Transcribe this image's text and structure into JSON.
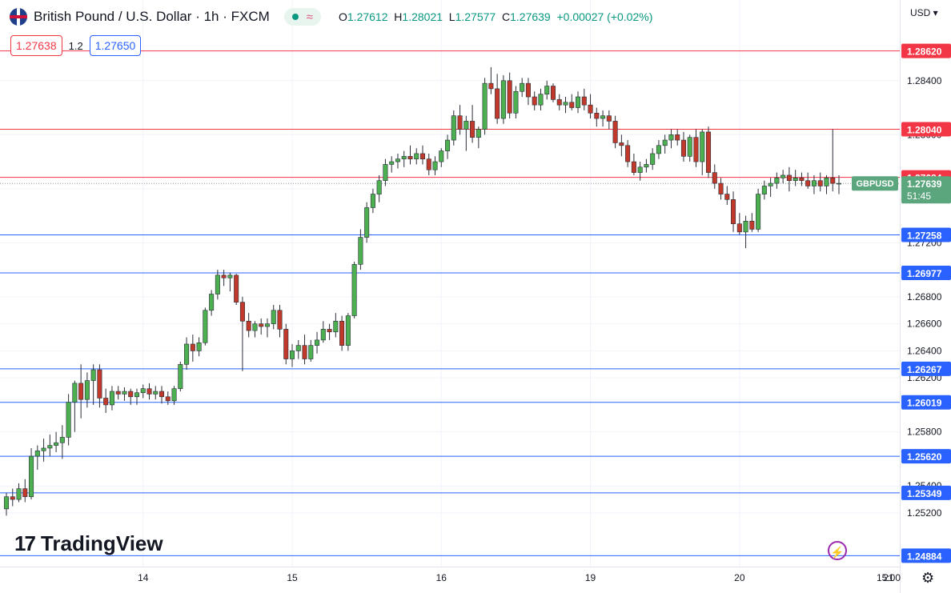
{
  "header": {
    "title": "British Pound / U.S. Dollar · 1h · FXCM",
    "ohlc": {
      "o_label": "O",
      "o": "1.27612",
      "h_label": "H",
      "h": "1.28021",
      "l_label": "L",
      "l": "1.27577",
      "c_label": "C",
      "c": "1.27639",
      "change": "+0.00027 (+0.02%)"
    },
    "wave_symbol": "≈"
  },
  "quote": {
    "sell": "1.27638",
    "spread": "1.2",
    "buy": "1.27650"
  },
  "currency": "USD",
  "brand": "TradingView",
  "icons": [
    "flag-icon",
    "gear-icon",
    "bolt-icon"
  ],
  "colors": {
    "up": "#089981",
    "down": "#f23645",
    "candle_up": "#4caf50",
    "candle_down": "#c0392b",
    "resistance": "#f23645",
    "support": "#2962ff",
    "current": "#5ca67e"
  },
  "chart_data": {
    "type": "candlestick",
    "symbol": "GBPUSD",
    "current_price": "1.27639",
    "countdown": "51:45",
    "ylim": [
      1.2488,
      1.2876
    ],
    "y_ticks": [
      "1.28400",
      "1.28000",
      "1.27600",
      "1.27200",
      "1.26800",
      "1.26600",
      "1.26400",
      "1.26200",
      "1.25800",
      "1.25400",
      "1.25200"
    ],
    "x_ticks": [
      {
        "label": "14",
        "index": 22
      },
      {
        "label": "15",
        "index": 46
      },
      {
        "label": "16",
        "index": 70
      },
      {
        "label": "19",
        "index": 94
      },
      {
        "label": "20",
        "index": 118
      },
      {
        "label": "21",
        "index": 142
      },
      {
        "label": "15:00",
        "index": 157
      }
    ],
    "levels": [
      {
        "value": 1.2862,
        "label": "1.28620",
        "kind": "resistance"
      },
      {
        "value": 1.2804,
        "label": "1.28040",
        "kind": "resistance"
      },
      {
        "value": 1.27684,
        "label": "1.27684",
        "kind": "resistance"
      },
      {
        "value": 1.27258,
        "label": "1.27258",
        "kind": "support"
      },
      {
        "value": 1.26977,
        "label": "1.26977",
        "kind": "support"
      },
      {
        "value": 1.26267,
        "label": "1.26267",
        "kind": "support"
      },
      {
        "value": 1.26019,
        "label": "1.26019",
        "kind": "support"
      },
      {
        "value": 1.2562,
        "label": "1.25620",
        "kind": "support"
      },
      {
        "value": 1.25349,
        "label": "1.25349",
        "kind": "support"
      },
      {
        "value": 1.24884,
        "label": "1.24884",
        "kind": "support"
      }
    ],
    "candles": [
      [
        1.2523,
        1.2535,
        1.2518,
        1.2532
      ],
      [
        1.2532,
        1.2538,
        1.2525,
        1.253
      ],
      [
        1.253,
        1.2542,
        1.2528,
        1.2538
      ],
      [
        1.2538,
        1.2545,
        1.2528,
        1.2532
      ],
      [
        1.2532,
        1.2568,
        1.253,
        1.2562
      ],
      [
        1.2562,
        1.257,
        1.2552,
        1.2566
      ],
      [
        1.2566,
        1.2575,
        1.2558,
        1.2568
      ],
      [
        1.2568,
        1.2578,
        1.2562,
        1.257
      ],
      [
        1.257,
        1.258,
        1.2565,
        1.2572
      ],
      [
        1.2572,
        1.2585,
        1.256,
        1.2576
      ],
      [
        1.2576,
        1.2608,
        1.257,
        1.2602
      ],
      [
        1.2602,
        1.2618,
        1.258,
        1.2616
      ],
      [
        1.2616,
        1.263,
        1.259,
        1.2604
      ],
      [
        1.2604,
        1.2624,
        1.2598,
        1.2618
      ],
      [
        1.2618,
        1.263,
        1.26,
        1.2626
      ],
      [
        1.2626,
        1.263,
        1.2598,
        1.2605
      ],
      [
        1.2605,
        1.2612,
        1.2594,
        1.26
      ],
      [
        1.26,
        1.2614,
        1.2596,
        1.261
      ],
      [
        1.261,
        1.2614,
        1.2604,
        1.2608
      ],
      [
        1.2608,
        1.2613,
        1.2603,
        1.261
      ],
      [
        1.261,
        1.2612,
        1.26,
        1.2606
      ],
      [
        1.2606,
        1.2612,
        1.26,
        1.2609
      ],
      [
        1.2609,
        1.2615,
        1.2605,
        1.2612
      ],
      [
        1.2612,
        1.2616,
        1.2604,
        1.2608
      ],
      [
        1.2608,
        1.2614,
        1.2604,
        1.261
      ],
      [
        1.261,
        1.2614,
        1.2601,
        1.2606
      ],
      [
        1.2606,
        1.261,
        1.26,
        1.2603
      ],
      [
        1.2603,
        1.2614,
        1.26,
        1.2612
      ],
      [
        1.2612,
        1.2632,
        1.261,
        1.263
      ],
      [
        1.263,
        1.265,
        1.2626,
        1.2645
      ],
      [
        1.2645,
        1.2652,
        1.2632,
        1.264
      ],
      [
        1.264,
        1.265,
        1.2636,
        1.2646
      ],
      [
        1.2646,
        1.2672,
        1.2644,
        1.267
      ],
      [
        1.267,
        1.2685,
        1.2666,
        1.2682
      ],
      [
        1.2682,
        1.27,
        1.2678,
        1.2696
      ],
      [
        1.2696,
        1.27,
        1.2688,
        1.2694
      ],
      [
        1.2694,
        1.2698,
        1.2684,
        1.2696
      ],
      [
        1.2696,
        1.2697,
        1.2674,
        1.2676
      ],
      [
        1.2676,
        1.268,
        1.2625,
        1.2662
      ],
      [
        1.2662,
        1.2668,
        1.265,
        1.2655
      ],
      [
        1.2655,
        1.2662,
        1.265,
        1.266
      ],
      [
        1.266,
        1.2664,
        1.2652,
        1.2658
      ],
      [
        1.2658,
        1.2664,
        1.265,
        1.266
      ],
      [
        1.266,
        1.2674,
        1.2656,
        1.267
      ],
      [
        1.267,
        1.2674,
        1.265,
        1.2656
      ],
      [
        1.2656,
        1.266,
        1.263,
        1.2634
      ],
      [
        1.2634,
        1.2645,
        1.2628,
        1.264
      ],
      [
        1.264,
        1.2648,
        1.2634,
        1.2644
      ],
      [
        1.2644,
        1.2652,
        1.263,
        1.2634
      ],
      [
        1.2634,
        1.2648,
        1.2632,
        1.2644
      ],
      [
        1.2644,
        1.2654,
        1.2638,
        1.2648
      ],
      [
        1.2648,
        1.2662,
        1.2646,
        1.2656
      ],
      [
        1.2656,
        1.266,
        1.2648,
        1.2654
      ],
      [
        1.2654,
        1.2668,
        1.265,
        1.2662
      ],
      [
        1.2662,
        1.2666,
        1.264,
        1.2644
      ],
      [
        1.2644,
        1.2668,
        1.264,
        1.2666
      ],
      [
        1.2666,
        1.2706,
        1.2664,
        1.2704
      ],
      [
        1.2704,
        1.273,
        1.27,
        1.2724
      ],
      [
        1.2724,
        1.275,
        1.272,
        1.2746
      ],
      [
        1.2746,
        1.276,
        1.2742,
        1.2756
      ],
      [
        1.2756,
        1.277,
        1.275,
        1.2766
      ],
      [
        1.2766,
        1.2782,
        1.2762,
        1.2778
      ],
      [
        1.2778,
        1.2784,
        1.2772,
        1.278
      ],
      [
        1.278,
        1.2786,
        1.2775,
        1.2782
      ],
      [
        1.2782,
        1.2788,
        1.2776,
        1.2784
      ],
      [
        1.2784,
        1.2792,
        1.2778,
        1.2782
      ],
      [
        1.2782,
        1.279,
        1.2778,
        1.2786
      ],
      [
        1.2786,
        1.2792,
        1.2778,
        1.2782
      ],
      [
        1.2782,
        1.2786,
        1.277,
        1.2774
      ],
      [
        1.2774,
        1.2784,
        1.277,
        1.278
      ],
      [
        1.278,
        1.279,
        1.2776,
        1.2788
      ],
      [
        1.2788,
        1.28,
        1.2782,
        1.2796
      ],
      [
        1.2796,
        1.2818,
        1.2792,
        1.2814
      ],
      [
        1.2814,
        1.2822,
        1.28,
        1.2804
      ],
      [
        1.2804,
        1.2814,
        1.2788,
        1.281
      ],
      [
        1.281,
        1.2822,
        1.2794,
        1.2798
      ],
      [
        1.2798,
        1.2806,
        1.279,
        1.2804
      ],
      [
        1.2804,
        1.2842,
        1.28,
        1.2838
      ],
      [
        1.2838,
        1.285,
        1.283,
        1.2834
      ],
      [
        1.2834,
        1.2845,
        1.2808,
        1.2812
      ],
      [
        1.2812,
        1.2844,
        1.2808,
        1.284
      ],
      [
        1.284,
        1.2846,
        1.2812,
        1.2816
      ],
      [
        1.2816,
        1.2836,
        1.2812,
        1.2832
      ],
      [
        1.2832,
        1.2842,
        1.2828,
        1.2838
      ],
      [
        1.2838,
        1.2842,
        1.2822,
        1.2828
      ],
      [
        1.2828,
        1.2832,
        1.2818,
        1.2822
      ],
      [
        1.2822,
        1.2834,
        1.2818,
        1.283
      ],
      [
        1.283,
        1.284,
        1.2826,
        1.2836
      ],
      [
        1.2836,
        1.2838,
        1.2824,
        1.2826
      ],
      [
        1.2826,
        1.283,
        1.2818,
        1.2822
      ],
      [
        1.2822,
        1.2828,
        1.2816,
        1.2824
      ],
      [
        1.2824,
        1.283,
        1.2818,
        1.282
      ],
      [
        1.282,
        1.2832,
        1.2816,
        1.2828
      ],
      [
        1.2828,
        1.2834,
        1.2818,
        1.2822
      ],
      [
        1.2822,
        1.283,
        1.2812,
        1.2816
      ],
      [
        1.2816,
        1.282,
        1.2806,
        1.2812
      ],
      [
        1.2812,
        1.2818,
        1.2806,
        1.2814
      ],
      [
        1.2814,
        1.2818,
        1.2804,
        1.281
      ],
      [
        1.281,
        1.2814,
        1.279,
        1.2794
      ],
      [
        1.2794,
        1.28,
        1.2784,
        1.2792
      ],
      [
        1.2792,
        1.2796,
        1.2776,
        1.278
      ],
      [
        1.278,
        1.2786,
        1.277,
        1.2772
      ],
      [
        1.2772,
        1.278,
        1.2766,
        1.2776
      ],
      [
        1.2776,
        1.2782,
        1.2772,
        1.2778
      ],
      [
        1.2778,
        1.279,
        1.2774,
        1.2786
      ],
      [
        1.2786,
        1.2796,
        1.2782,
        1.2792
      ],
      [
        1.2792,
        1.28,
        1.2786,
        1.2796
      ],
      [
        1.2796,
        1.2804,
        1.279,
        1.28
      ],
      [
        1.28,
        1.2804,
        1.2792,
        1.2796
      ],
      [
        1.2796,
        1.2802,
        1.278,
        1.2784
      ],
      [
        1.2784,
        1.28,
        1.278,
        1.2798
      ],
      [
        1.2798,
        1.2804,
        1.2776,
        1.278
      ],
      [
        1.278,
        1.2804,
        1.277,
        1.2802
      ],
      [
        1.2802,
        1.2806,
        1.2768,
        1.2772
      ],
      [
        1.2772,
        1.2778,
        1.276,
        1.2764
      ],
      [
        1.2764,
        1.2768,
        1.2752,
        1.2756
      ],
      [
        1.2756,
        1.2762,
        1.2748,
        1.2752
      ],
      [
        1.2752,
        1.2758,
        1.2728,
        1.2734
      ],
      [
        1.2734,
        1.2742,
        1.2726,
        1.2728
      ],
      [
        1.2728,
        1.274,
        1.2716,
        1.2736
      ],
      [
        1.2736,
        1.2742,
        1.2728,
        1.273
      ],
      [
        1.273,
        1.276,
        1.2728,
        1.2756
      ],
      [
        1.2756,
        1.2766,
        1.2752,
        1.2762
      ],
      [
        1.2762,
        1.2768,
        1.2754,
        1.2764
      ],
      [
        1.2764,
        1.2772,
        1.276,
        1.2768
      ],
      [
        1.2768,
        1.2774,
        1.2764,
        1.277
      ],
      [
        1.277,
        1.2776,
        1.2758,
        1.2766
      ],
      [
        1.2766,
        1.2774,
        1.2762,
        1.2768
      ],
      [
        1.2768,
        1.2772,
        1.2762,
        1.2766
      ],
      [
        1.2766,
        1.2772,
        1.276,
        1.2762
      ],
      [
        1.2762,
        1.277,
        1.2756,
        1.2766
      ],
      [
        1.2766,
        1.2772,
        1.2758,
        1.2762
      ],
      [
        1.2762,
        1.277,
        1.2756,
        1.2768
      ],
      [
        1.2768,
        1.2804,
        1.2758,
        1.2764
      ],
      [
        1.2764,
        1.277,
        1.2756,
        1.2764
      ]
    ]
  }
}
